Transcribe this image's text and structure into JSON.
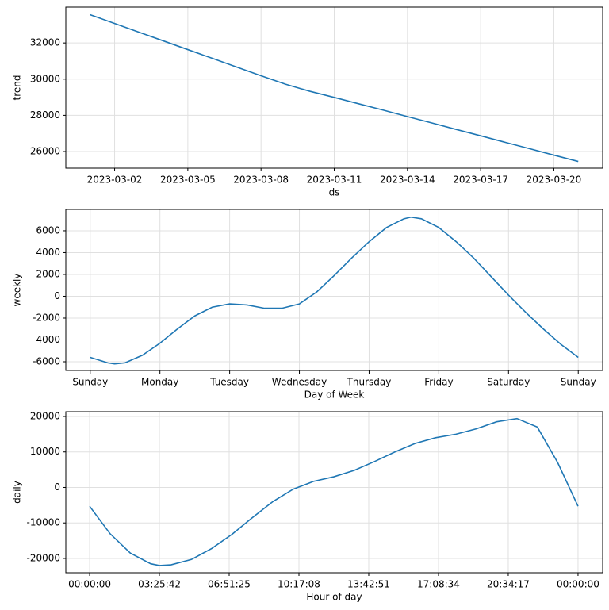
{
  "chart_data": [
    {
      "type": "line",
      "ylabel": "trend",
      "xlabel": "ds",
      "grid": true,
      "x": [
        "2023-03-01",
        "2023-03-02",
        "2023-03-03",
        "2023-03-04",
        "2023-03-05",
        "2023-03-06",
        "2023-03-07",
        "2023-03-08",
        "2023-03-09",
        "2023-03-10",
        "2023-03-11",
        "2023-03-12",
        "2023-03-13",
        "2023-03-14",
        "2023-03-15",
        "2023-03-16",
        "2023-03-17",
        "2023-03-18",
        "2023-03-19",
        "2023-03-20",
        "2023-03-21"
      ],
      "series": [
        {
          "color": "#1f77b4",
          "values": [
            33560,
            33078,
            32596,
            32114,
            31632,
            31150,
            30668,
            30186,
            29720,
            29330,
            28990,
            28640,
            28290,
            27930,
            27580,
            27220,
            26870,
            26510,
            26160,
            25800,
            25450
          ]
        }
      ],
      "xlim": [
        "2023-02-28",
        "2023-03-22"
      ],
      "xticks": [
        "2023-03-02",
        "2023-03-05",
        "2023-03-08",
        "2023-03-11",
        "2023-03-14",
        "2023-03-17",
        "2023-03-20"
      ],
      "ylim": [
        25080,
        33980
      ],
      "yticks": [
        26000,
        28000,
        30000,
        32000
      ]
    },
    {
      "type": "line",
      "ylabel": "weekly",
      "xlabel": "Day of Week",
      "grid": true,
      "x": [
        0,
        0.25,
        0.35,
        0.5,
        0.75,
        1,
        1.25,
        1.5,
        1.75,
        2,
        2.25,
        2.5,
        2.75,
        3,
        3.25,
        3.5,
        3.75,
        4,
        4.25,
        4.5,
        4.6,
        4.75,
        5,
        5.25,
        5.5,
        5.75,
        6,
        6.25,
        6.5,
        6.75,
        7
      ],
      "series": [
        {
          "color": "#1f77b4",
          "values": [
            -5600,
            -6100,
            -6200,
            -6100,
            -5400,
            -4300,
            -3000,
            -1800,
            -1000,
            -700,
            -800,
            -1100,
            -1100,
            -700,
            400,
            1900,
            3500,
            5000,
            6300,
            7100,
            7250,
            7100,
            6300,
            5000,
            3500,
            1800,
            100,
            -1500,
            -3000,
            -4400,
            -5600
          ]
        }
      ],
      "xlim": [
        -0.35,
        7.35
      ],
      "xticks": [
        {
          "value": 0,
          "label": "Sunday"
        },
        {
          "value": 1,
          "label": "Monday"
        },
        {
          "value": 2,
          "label": "Tuesday"
        },
        {
          "value": 3,
          "label": "Wednesday"
        },
        {
          "value": 4,
          "label": "Thursday"
        },
        {
          "value": 5,
          "label": "Friday"
        },
        {
          "value": 6,
          "label": "Saturday"
        },
        {
          "value": 7,
          "label": "Sunday"
        }
      ],
      "ylim": [
        -6800,
        7960
      ],
      "yticks": [
        -6000,
        -4000,
        -2000,
        0,
        2000,
        4000,
        6000
      ]
    },
    {
      "type": "line",
      "ylabel": "daily",
      "xlabel": "Hour of day",
      "grid": true,
      "x": [
        0,
        1,
        2,
        3,
        3.43,
        4,
        5,
        6,
        7,
        8,
        9,
        10,
        11,
        12,
        13,
        14,
        15,
        16,
        17,
        18,
        19,
        20,
        21,
        22,
        23,
        24
      ],
      "series": [
        {
          "color": "#1f77b4",
          "values": [
            -5300,
            -13000,
            -18500,
            -21500,
            -22000,
            -21800,
            -20300,
            -17200,
            -13200,
            -8500,
            -4000,
            -500,
            1700,
            3000,
            4800,
            7300,
            10000,
            12400,
            14000,
            15000,
            16500,
            18500,
            19400,
            17000,
            7000,
            -5300
          ]
        }
      ],
      "xlim": [
        -1.17,
        25.21
      ],
      "xticks": [
        {
          "value": 0,
          "label": "00:00:00"
        },
        {
          "value": 3.4286,
          "label": "03:25:42"
        },
        {
          "value": 6.8571,
          "label": "06:51:25"
        },
        {
          "value": 10.2857,
          "label": "10:17:08"
        },
        {
          "value": 13.7143,
          "label": "13:42:51"
        },
        {
          "value": 17.1429,
          "label": "17:08:34"
        },
        {
          "value": 20.5714,
          "label": "20:34:17"
        },
        {
          "value": 24,
          "label": "00:00:00"
        }
      ],
      "ylim": [
        -24030,
        21340
      ],
      "yticks": [
        -20000,
        -10000,
        0,
        10000,
        20000
      ]
    }
  ]
}
